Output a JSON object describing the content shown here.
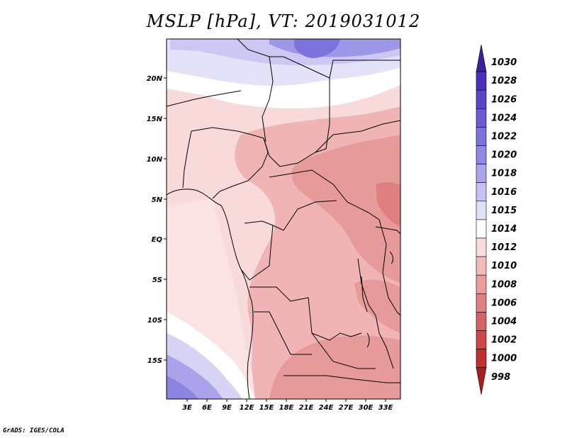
{
  "title": "MSLP [hPa], VT: 2019031012",
  "credit": "GrADS: IGES/COLA",
  "map": {
    "region": "Central Africa",
    "lat_labels": [
      "20N",
      "15N",
      "10N",
      "5N",
      "EQ",
      "5S",
      "10S",
      "15S"
    ],
    "lon_labels": [
      "3E",
      "6E",
      "9E",
      "12E",
      "15E",
      "18E",
      "21E",
      "24E",
      "27E",
      "30E",
      "33E"
    ]
  },
  "colorbar": {
    "levels": [
      "1030",
      "1028",
      "1026",
      "1024",
      "1022",
      "1020",
      "1018",
      "1016",
      "1015",
      "1014",
      "1012",
      "1010",
      "1008",
      "1006",
      "1004",
      "1002",
      "1000",
      "998"
    ],
    "colors": [
      "#3a1f9e",
      "#4b2fb8",
      "#5a45c8",
      "#6b5ad3",
      "#7c72dc",
      "#9188e3",
      "#aba4eb",
      "#c6c1f2",
      "#e2e0f8",
      "#ffffff",
      "#f9dcdc",
      "#f3bcbc",
      "#ea9c9c",
      "#e07f7f",
      "#d66363",
      "#cc4747",
      "#c02f2f",
      "#a81e1e"
    ]
  }
}
